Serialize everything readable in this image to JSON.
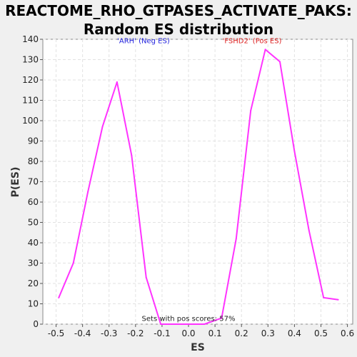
{
  "chart_data": {
    "type": "line",
    "title_line1": "REACTOME_RHO_GTPASES_ACTIVATE_PAKS:",
    "title_line2": "Random ES distribution",
    "xlabel": "ES",
    "ylabel": "P(ES)",
    "xlim": [
      -0.55,
      0.62
    ],
    "ylim": [
      0,
      140
    ],
    "x_ticks": [
      -0.5,
      -0.4,
      -0.3,
      -0.2,
      -0.1,
      0.0,
      0.1,
      0.2,
      0.3,
      0.4,
      0.5,
      0.6
    ],
    "x_tick_labels": [
      "-0.5",
      "-0.4",
      "-0.3",
      "-0.2",
      "-0.1",
      "0.0",
      "0.1",
      "0.2",
      "0.3",
      "0.4",
      "0.5",
      "0.6"
    ],
    "y_ticks": [
      0,
      10,
      20,
      30,
      40,
      50,
      60,
      70,
      80,
      90,
      100,
      110,
      120,
      130,
      140
    ],
    "y_tick_labels": [
      "0",
      "10",
      "20",
      "30",
      "40",
      "50",
      "60",
      "70",
      "80",
      "90",
      "100",
      "110",
      "120",
      "130",
      "140"
    ],
    "grid": true,
    "series": [
      {
        "color": "#ff33ff",
        "x": [
          -0.49,
          -0.435,
          -0.38,
          -0.325,
          -0.27,
          -0.215,
          -0.16,
          -0.105,
          -0.05,
          0.0,
          0.06,
          0.125,
          0.18,
          0.235,
          0.29,
          0.345,
          0.4,
          0.455,
          0.51,
          0.565
        ],
        "y": [
          13,
          30,
          65,
          97,
          119,
          83,
          23,
          0,
          0,
          0,
          0,
          3,
          42,
          105,
          135,
          129,
          85,
          46,
          13,
          12
        ]
      }
    ],
    "annotations": [
      {
        "text": "'ARH' (Neg ES)",
        "x": -0.17,
        "y": 138,
        "color": "#2222dd"
      },
      {
        "text": "'FSHD2' (Pos ES)",
        "x": 0.24,
        "y": 138,
        "color": "#dd2222"
      },
      {
        "text": "Sets with pos scores: 57%",
        "x": 0.0,
        "y": 1.5,
        "color": "#222222"
      }
    ]
  }
}
